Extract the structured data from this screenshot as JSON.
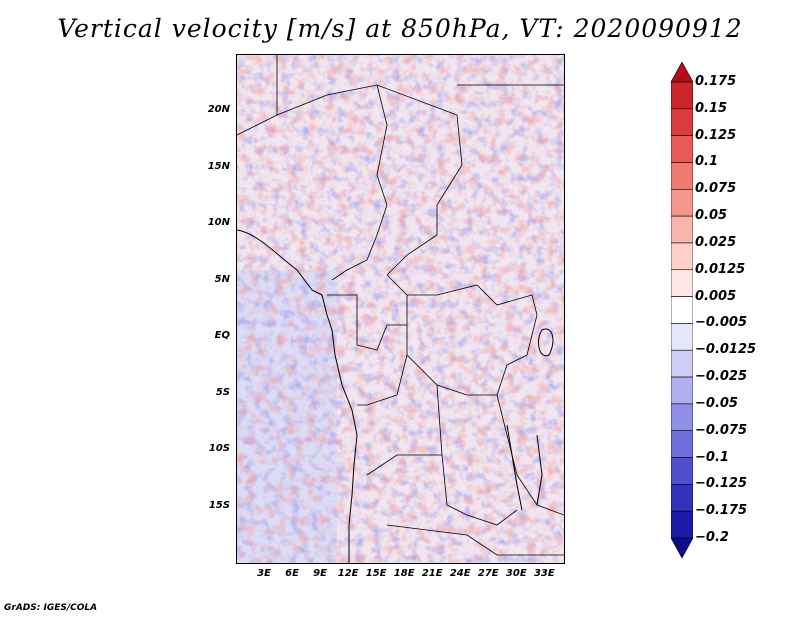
{
  "title": "Vertical velocity [m/s] at 850hPa, VT: 2020090912",
  "map": {
    "lat_labels": [
      "20N",
      "15N",
      "10N",
      "5N",
      "EQ",
      "5S",
      "10S",
      "15S"
    ],
    "lat_values": [
      20,
      15,
      10,
      5,
      0,
      -5,
      -10,
      -15
    ],
    "lon_labels": [
      "3E",
      "6E",
      "9E",
      "12E",
      "15E",
      "18E",
      "21E",
      "24E",
      "27E",
      "30E",
      "33E"
    ],
    "lon_values": [
      3,
      6,
      9,
      12,
      15,
      18,
      21,
      24,
      27,
      30,
      33
    ],
    "lon_range": [
      0,
      35
    ],
    "lat_range": [
      -20,
      25
    ]
  },
  "colorbar": {
    "levels": [
      "0.175",
      "0.15",
      "0.125",
      "0.1",
      "0.075",
      "0.05",
      "0.025",
      "0.0125",
      "0.005",
      "-0.005",
      "-0.0125",
      "-0.025",
      "-0.05",
      "-0.075",
      "-0.1",
      "-0.125",
      "-0.175",
      "-0.2"
    ],
    "colors": [
      "#b40d15",
      "#c8262a",
      "#da3c3c",
      "#e85a55",
      "#f07a70",
      "#f4978c",
      "#f8b5ab",
      "#fbd0c8",
      "#fde8e3",
      "#ffffff",
      "#e6e6fb",
      "#cdcdf6",
      "#b0b0f0",
      "#9090e6",
      "#7070dc",
      "#5050ce",
      "#3232bd",
      "#1c1ca8",
      "#0c0c8c"
    ]
  },
  "footer": "GrADS: IGES/COLA"
}
